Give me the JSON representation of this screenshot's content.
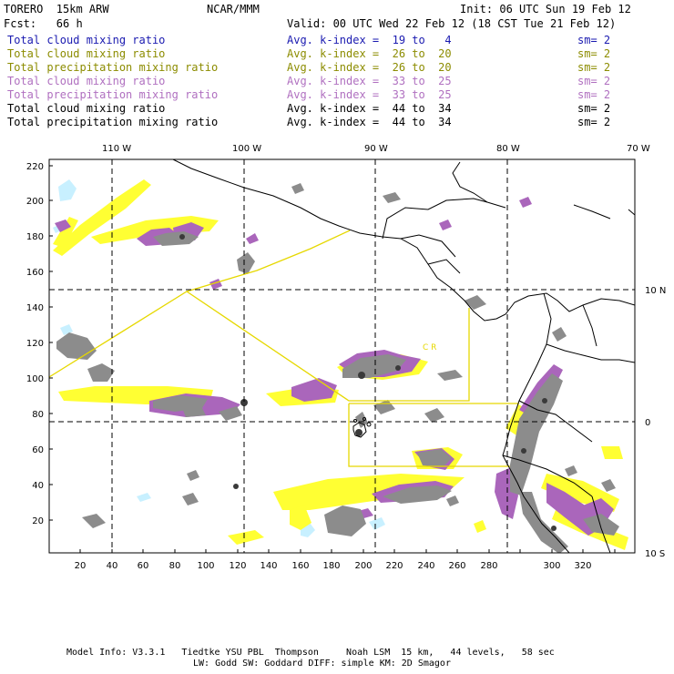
{
  "header": {
    "model": "TORERO  15km ARW",
    "org": "NCAR/MMM",
    "init": "Init: 06 UTC Sun 19 Feb 12",
    "fcst": "Fcst:   66 h",
    "valid": "Valid: 00 UTC Wed 22 Feb 12 (18 CST Tue 21 Feb 12)"
  },
  "legend": [
    {
      "field": "Total cloud mixing ratio",
      "kindex": "Avg. k-index =  19 to   4",
      "sm": "sm= 2",
      "color": "#1a1ab0"
    },
    {
      "field": "Total cloud mixing ratio",
      "kindex": "Avg. k-index =  26 to  20",
      "sm": "sm= 2",
      "color": "#8c8c00"
    },
    {
      "field": "Total precipitation mixing ratio",
      "kindex": "Avg. k-index =  26 to  20",
      "sm": "sm= 2",
      "color": "#8c8c00"
    },
    {
      "field": "Total cloud mixing ratio",
      "kindex": "Avg. k-index =  33 to  25",
      "sm": "sm= 2",
      "color": "#b070c0"
    },
    {
      "field": "Total precipitation mixing ratio",
      "kindex": "Avg. k-index =  33 to  25",
      "sm": "sm= 2",
      "color": "#b070c0"
    },
    {
      "field": "Total cloud mixing ratio",
      "kindex": "Avg. k-index =  44 to  34",
      "sm": "sm= 2",
      "color": "#000000"
    },
    {
      "field": "Total precipitation mixing ratio",
      "kindex": "Avg. k-index =  44 to  34",
      "sm": "sm= 2",
      "color": "#000000"
    }
  ],
  "axes": {
    "top_labels": [
      "110 W",
      "100 W",
      "90 W",
      "80 W",
      "70 W"
    ],
    "right_labels": [
      "10 N",
      "0",
      "10 S"
    ],
    "x_ticks": [
      "20",
      "40",
      "60",
      "80",
      "100",
      "120",
      "140",
      "160",
      "180",
      "200",
      "220",
      "240",
      "260",
      "280",
      "300",
      "320"
    ],
    "y_ticks": [
      "220",
      "200",
      "180",
      "160",
      "140",
      "120",
      "100",
      "80",
      "60",
      "40",
      "20"
    ]
  },
  "map_labels": {
    "region": "C  R"
  },
  "footer": {
    "line1": "Model Info: V3.3.1   Tiedtke YSU PBL  Thompson     Noah LSM  15 km,   44 levels,   58 sec",
    "line2": "LW: Godd SW: Goddard DIFF: simple KM: 2D Smagor"
  },
  "colors": {
    "yellow": "#ffff33",
    "purple": "#aa66bb",
    "gray": "#8c8c8c",
    "dark": "#3a3a3a",
    "cyan": "#c8f0ff",
    "domain_line": "#e6d800"
  }
}
